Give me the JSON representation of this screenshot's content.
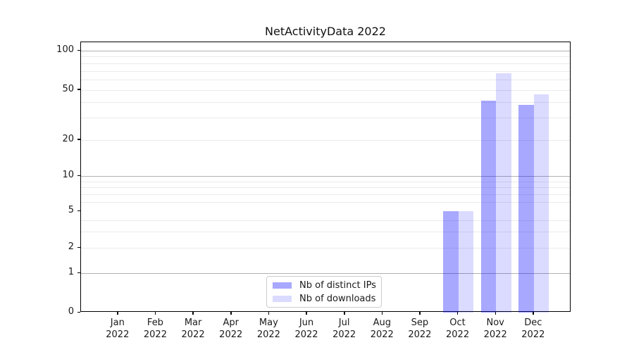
{
  "chart_data": {
    "type": "bar",
    "title": "NetActivityData 2022",
    "categories": [
      "Jan",
      "Feb",
      "Mar",
      "Apr",
      "May",
      "Jun",
      "Jul",
      "Aug",
      "Sep",
      "Oct",
      "Nov",
      "Dec"
    ],
    "category_year": "2022",
    "series": [
      {
        "name": "Nb of distinct IPs",
        "color": "rgba(0,0,255,0.34)",
        "values": [
          0,
          0,
          0,
          0,
          0,
          0,
          0,
          0,
          0,
          5,
          41,
          38
        ]
      },
      {
        "name": "Nb of downloads",
        "color": "rgba(0,0,255,0.14)",
        "values": [
          0,
          0,
          0,
          0,
          0,
          0,
          0,
          0,
          0,
          5,
          67,
          46
        ]
      }
    ],
    "y_axis": {
      "scale": "log-like with 0 baseline",
      "tick_labels": [
        0,
        1,
        2,
        5,
        10,
        20,
        50,
        100
      ],
      "major_gridlines": [
        1,
        10,
        100
      ],
      "minor_gridlines": [
        2,
        3,
        4,
        6,
        7,
        8,
        9,
        20,
        30,
        40,
        50,
        60,
        70,
        80,
        90
      ],
      "ylim": [
        0,
        110
      ]
    },
    "legend": {
      "position": "bottom-center"
    },
    "colors": {
      "bar_distinct_ips": "rgba(0,0,255,0.34)",
      "bar_downloads": "rgba(0,0,255,0.14)",
      "major_grid": "#b1b1b1",
      "minor_grid": "#ebebeb",
      "spine": "#000000",
      "text": "#1a1a1a"
    },
    "grid": "on",
    "legend_entries": [
      "Nb of distinct IPs",
      "Nb of downloads"
    ]
  }
}
